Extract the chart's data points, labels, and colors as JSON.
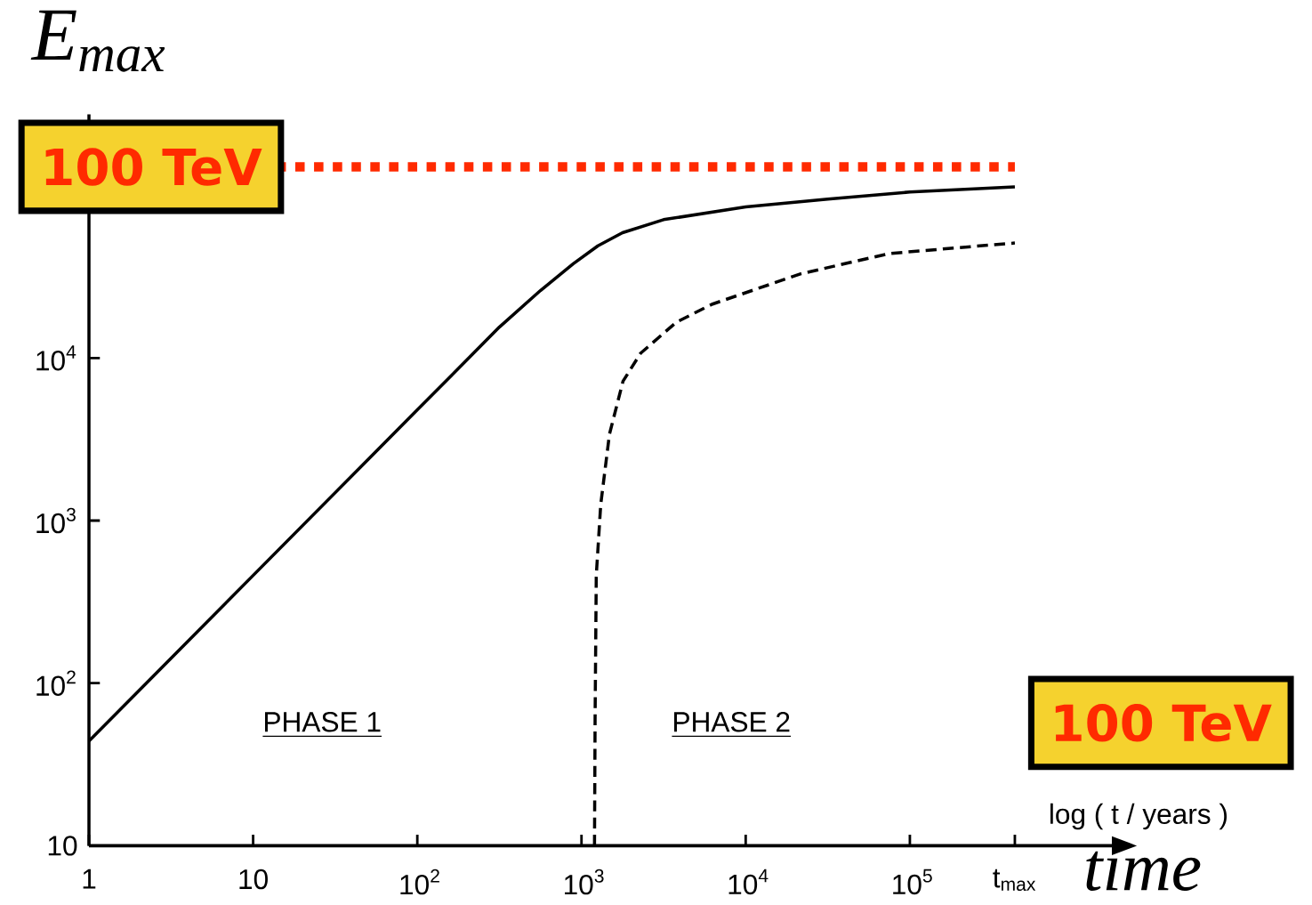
{
  "chart_data": {
    "type": "line",
    "log": "xy",
    "ylabel": "E$_{max}$",
    "xlabel": "log ( t / years )",
    "xlim": [
      1,
      1700000
    ],
    "ylim": [
      10,
      316000
    ],
    "xticks": [
      1,
      10,
      {
        "value": 100,
        "label": "10$^{2}$"
      },
      {
        "value": 1000,
        "label": "10$^{3}$"
      },
      {
        "value": 10000,
        "label": "10$^{4}$"
      },
      {
        "value": 100000,
        "label": "10$^{5}$"
      },
      {
        "value": 436000,
        "label": "t$_{max}$"
      }
    ],
    "yticks": [
      10,
      {
        "value": 100,
        "label": "10$^{2}$"
      },
      {
        "value": 1000,
        "label": "10$^{3}$"
      },
      {
        "value": 10000,
        "label": "10$^{4}$"
      }
    ],
    "series": [
      {
        "color": "#000000",
        "line_style": "solid",
        "x": [
          1,
          10,
          100,
          316,
          562,
          891,
          1259,
          1778,
          3162,
          10000,
          31623,
          100000,
          436000
        ],
        "values": [
          44,
          460,
          4800,
          15500,
          26000,
          38000,
          49000,
          59000,
          71000,
          85000,
          95000,
          105000,
          113000
        ]
      },
      {
        "color": "#000000",
        "line_style": "dashed",
        "x": [
          1200,
          1210,
          1230,
          1310,
          1480,
          1790,
          2290,
          3780,
          6220,
          21700,
          75500,
          436000
        ],
        "values": [
          10,
          60,
          460,
          1260,
          3400,
          7200,
          10700,
          16600,
          21400,
          33000,
          44000,
          51000
        ]
      }
    ],
    "ref_lines": [
      {
        "axis": "y",
        "value": 150000,
        "label": "100 TeV",
        "color": "#ff2a00",
        "line_style": "dotted"
      }
    ],
    "annotations": [
      "PHASE 1",
      "PHASE 2",
      "100 TeV",
      "time"
    ]
  }
}
